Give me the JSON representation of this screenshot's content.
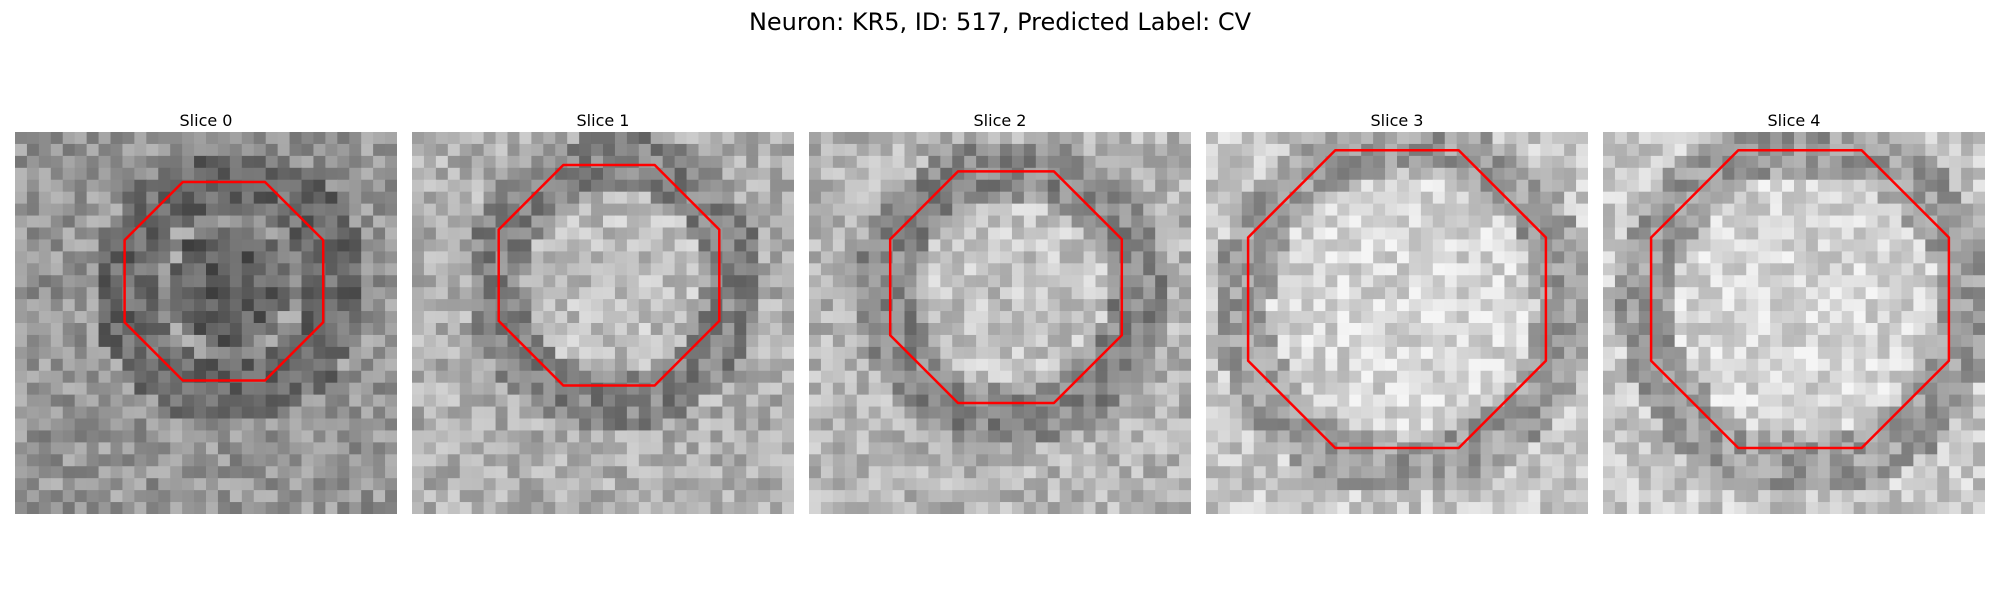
{
  "figure": {
    "title": "Neuron: KR5, ID: 517, Predicted Label: CV",
    "contour_color": "#ff0000"
  },
  "panels": [
    {
      "label": "Slice 0",
      "seed": 11,
      "base": 150,
      "dark_center": true
    },
    {
      "label": "Slice 1",
      "seed": 23,
      "base": 175,
      "dark_center": false
    },
    {
      "label": "Slice 2",
      "seed": 37,
      "base": 180,
      "dark_center": false
    },
    {
      "label": "Slice 3",
      "seed": 41,
      "base": 200,
      "dark_center": false
    },
    {
      "label": "Slice 4",
      "seed": 59,
      "base": 200,
      "dark_center": false
    }
  ]
}
